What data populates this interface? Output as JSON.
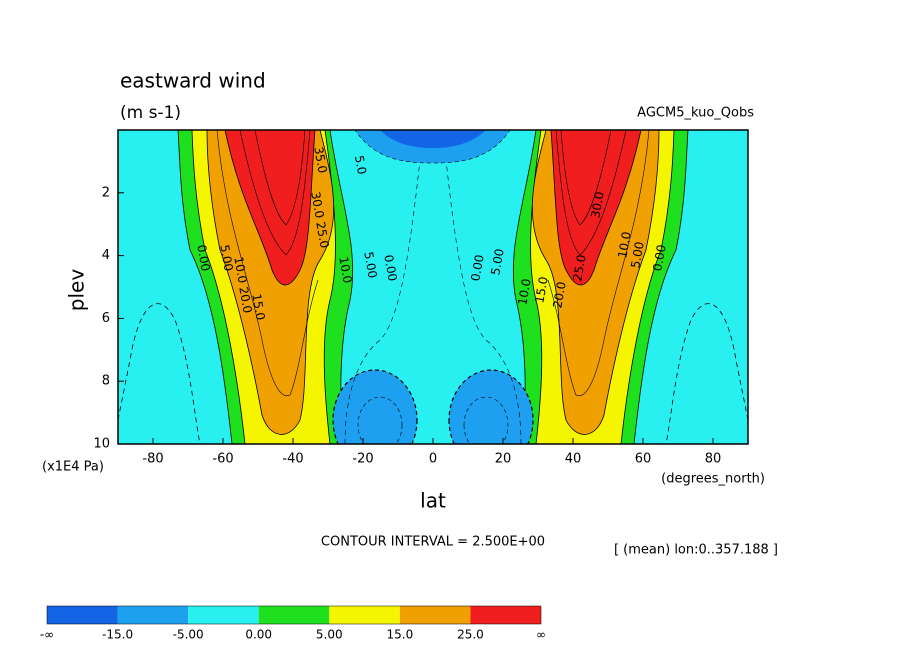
{
  "chart_data": {
    "type": "contour",
    "title": "eastward wind",
    "subtitle": "(m s-1)",
    "dataset": "AGCM5_kuo_Qobs",
    "xlabel": "lat",
    "ylabel": "plev",
    "xunits": "(degrees_north)",
    "yunits": "(x1E4 Pa)",
    "xlim": [
      -90,
      90
    ],
    "ylim": [
      10,
      0
    ],
    "xticks": [
      -80,
      -60,
      -40,
      -20,
      0,
      20,
      40,
      60,
      80
    ],
    "yticks": [
      2,
      4,
      6,
      8,
      10
    ],
    "contour_interval": "CONTOUR INTERVAL = 2.500E+00",
    "region": "[ (mean) lon:0..357.188 ]",
    "contour_labels": [
      "0.00",
      "5.00",
      "10.0",
      "15.0",
      "20.0",
      "25.0",
      "30.0",
      "35.0",
      "10.0",
      "5.00",
      "0.00",
      "5.0",
      "0.00",
      "5.00",
      "10.0",
      "15.0",
      "20.0",
      "25.0",
      "30.0",
      "10.0",
      "5.00",
      "0.00"
    ],
    "colorbar": {
      "labels": [
        "-∞",
        "-15.0",
        "-5.00",
        "0.00",
        "5.00",
        "15.0",
        "25.0",
        "∞"
      ],
      "colors": [
        "#1464e6",
        "#1ea0f0",
        "#28f0f0",
        "#1ee01e",
        "#f5f500",
        "#f0a000",
        "#f01e1e"
      ]
    }
  }
}
